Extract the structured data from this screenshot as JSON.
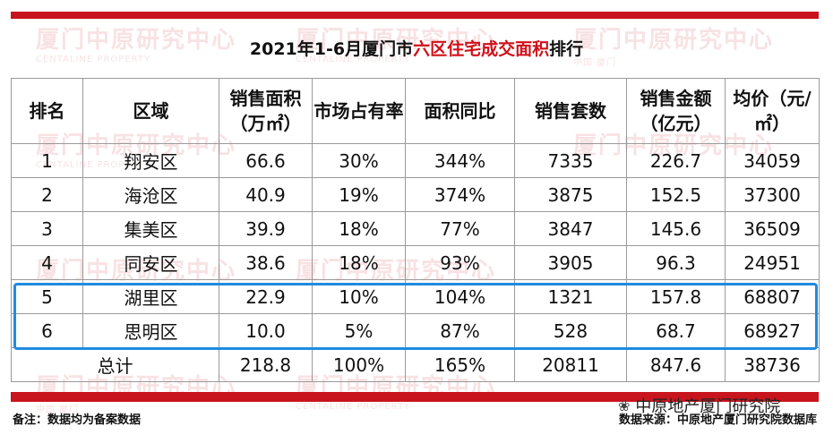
{
  "title": {
    "prefix": "2021年1-6月厦门市",
    "highlight": "六区住宅成交面积",
    "suffix": "排行"
  },
  "header": {
    "rank": "排名",
    "area": "区域",
    "sales_area": "销售面积（万㎡）",
    "share": "市场占有率",
    "yoy": "面积同比",
    "units": "销售套数",
    "amount": "销售金额（亿元）",
    "avg_price": "均价（元/㎡）"
  },
  "rows": [
    {
      "rank": "1",
      "area": "翔安区",
      "sales_area": "66.6",
      "share": "30%",
      "yoy": "344%",
      "units": "7335",
      "amount": "226.7",
      "avg_price": "34059"
    },
    {
      "rank": "2",
      "area": "海沧区",
      "sales_area": "40.9",
      "share": "19%",
      "yoy": "374%",
      "units": "3875",
      "amount": "152.5",
      "avg_price": "37300"
    },
    {
      "rank": "3",
      "area": "集美区",
      "sales_area": "39.9",
      "share": "18%",
      "yoy": "77%",
      "units": "3847",
      "amount": "145.6",
      "avg_price": "36509"
    },
    {
      "rank": "4",
      "area": "同安区",
      "sales_area": "38.6",
      "share": "18%",
      "yoy": "93%",
      "units": "3905",
      "amount": "96.3",
      "avg_price": "24951"
    },
    {
      "rank": "5",
      "area": "湖里区",
      "sales_area": "22.9",
      "share": "10%",
      "yoy": "104%",
      "units": "1321",
      "amount": "157.8",
      "avg_price": "68807"
    },
    {
      "rank": "6",
      "area": "思明区",
      "sales_area": "10.0",
      "share": "5%",
      "yoy": "87%",
      "units": "528",
      "amount": "68.7",
      "avg_price": "68927"
    }
  ],
  "total": {
    "label": "总计",
    "sales_area": "218.8",
    "share": "100%",
    "yoy": "165%",
    "units": "20811",
    "amount": "847.6",
    "avg_price": "38736"
  },
  "footer": {
    "note": "备注：数据均为备案数据",
    "source": "数据来源：中原地产厦门研究院数据库",
    "brand": "中原地产厦门研究院"
  },
  "watermark": {
    "text": "厦门中原研究中心",
    "sub": "CENTALINE PROPERTY",
    "sub2": "中国·厦门"
  },
  "colors": {
    "brand_red": "#c8141c",
    "title_highlight": "#d0101a",
    "highlight_box": "#1f8be0"
  }
}
